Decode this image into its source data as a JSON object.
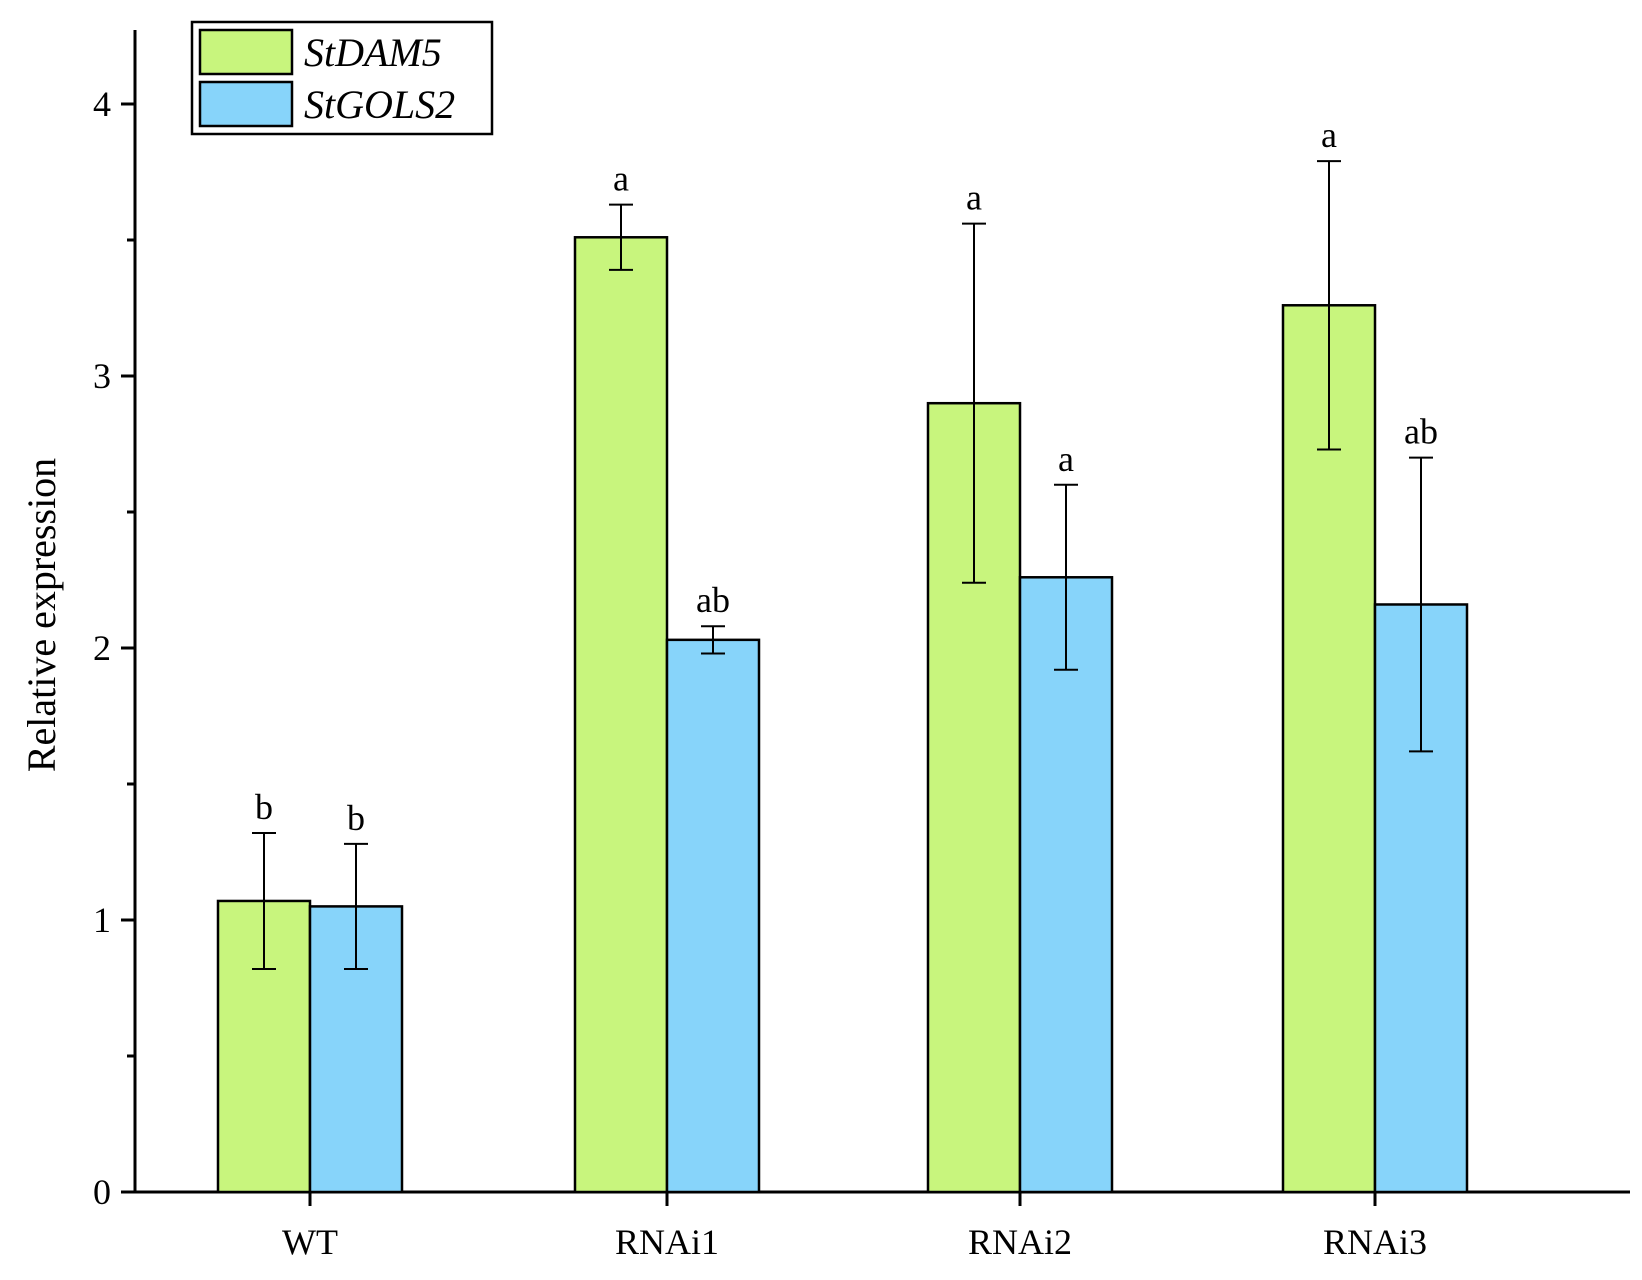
{
  "chart_data": {
    "type": "bar",
    "title": "",
    "xlabel": "",
    "ylabel": "Relative expression",
    "ylim": [
      0,
      4.3
    ],
    "yticks": [
      0,
      1,
      2,
      3,
      4
    ],
    "categories": [
      "WT",
      "RNAi1",
      "RNAi2",
      "RNAi3"
    ],
    "series": [
      {
        "name": "StDAM5",
        "color": "#c8f57d",
        "values": [
          1.07,
          3.51,
          2.9,
          3.26
        ],
        "errors": [
          0.25,
          0.12,
          0.66,
          0.53
        ],
        "significance": [
          "b",
          "a",
          "a",
          "a"
        ]
      },
      {
        "name": "StGOLS2",
        "color": "#87d4fa",
        "values": [
          1.05,
          2.03,
          2.26,
          2.16
        ],
        "errors": [
          0.23,
          0.05,
          0.34,
          0.54
        ],
        "significance": [
          "b",
          "ab",
          "a",
          "ab"
        ]
      }
    ],
    "legend_position": "top-left"
  }
}
